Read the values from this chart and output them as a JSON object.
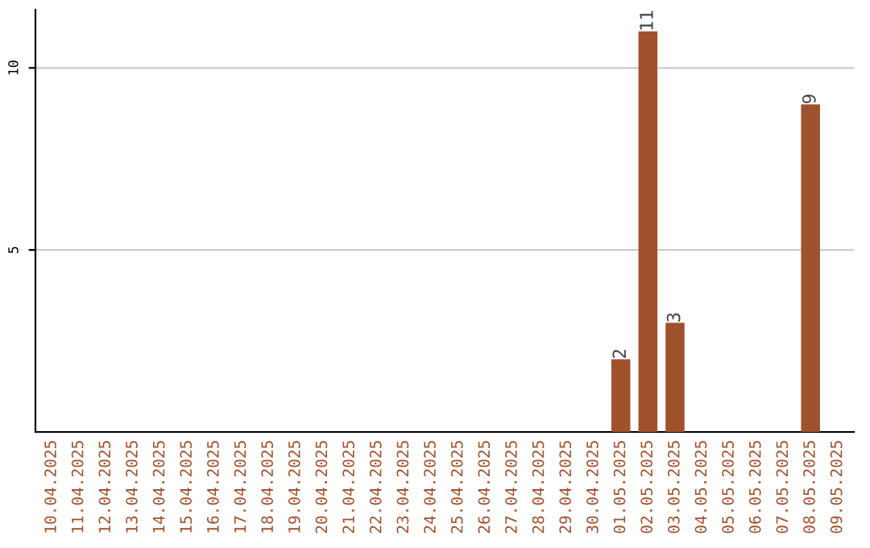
{
  "chart_data": {
    "type": "bar",
    "categories": [
      "10.04.2025",
      "11.04.2025",
      "12.04.2025",
      "13.04.2025",
      "14.04.2025",
      "15.04.2025",
      "16.04.2025",
      "17.04.2025",
      "18.04.2025",
      "19.04.2025",
      "20.04.2025",
      "21.04.2025",
      "22.04.2025",
      "23.04.2025",
      "24.04.2025",
      "25.04.2025",
      "26.04.2025",
      "27.04.2025",
      "28.04.2025",
      "29.04.2025",
      "30.04.2025",
      "01.05.2025",
      "02.05.2025",
      "03.05.2025",
      "04.05.2025",
      "05.05.2025",
      "06.05.2025",
      "07.05.2025",
      "08.05.2025",
      "09.05.2025"
    ],
    "values": [
      0,
      0,
      0,
      0,
      0,
      0,
      0,
      0,
      0,
      0,
      0,
      0,
      0,
      0,
      0,
      0,
      0,
      0,
      0,
      0,
      0,
      2,
      11,
      3,
      0,
      0,
      0,
      0,
      9,
      0
    ],
    "value_labels": [
      null,
      null,
      null,
      null,
      null,
      null,
      null,
      null,
      null,
      null,
      null,
      null,
      null,
      null,
      null,
      null,
      null,
      null,
      null,
      null,
      null,
      "2",
      "11",
      "3",
      null,
      null,
      null,
      null,
      "9",
      null
    ],
    "color": "#a0522d",
    "ylim": [
      0,
      11.6
    ],
    "yticks": [
      5,
      10
    ],
    "grid": "y"
  }
}
